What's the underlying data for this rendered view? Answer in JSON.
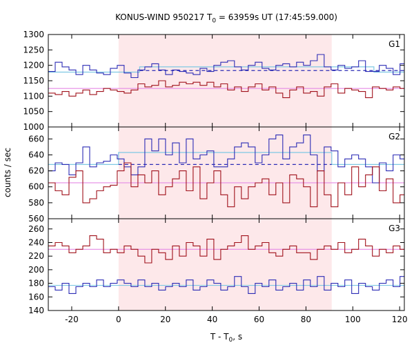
{
  "title_main": "KONUS-WIND 950217 T",
  "title_sub": "0",
  "title_rest": " = 63959s UT (17:45:59.000)",
  "xlabel_main": "T - T",
  "xlabel_sub": "0",
  "xlabel_rest": ", s",
  "ylabel": "counts / sec",
  "colors": {
    "blue": "#2b2bb5",
    "red": "#a0101a",
    "cyan": "#7ec8e3",
    "magenta": "#e58ae5",
    "shade": "#fde8ea"
  },
  "chart_data": [
    {
      "type": "line",
      "panel": "G1",
      "x_range": [
        -30,
        122
      ],
      "ylim": [
        1000,
        1300
      ],
      "yticks": [
        1000,
        1050,
        1100,
        1150,
        1200,
        1250,
        1300
      ],
      "xticks": [
        -20,
        0,
        20,
        40,
        60,
        80,
        100,
        120
      ],
      "shaded_interval": [
        0,
        91
      ],
      "bin_width": 2.944,
      "series": [
        {
          "color_key": "blue",
          "x_start": -30,
          "values": [
            1180,
            1210,
            1195,
            1185,
            1170,
            1200,
            1185,
            1175,
            1170,
            1190,
            1200,
            1175,
            1160,
            1185,
            1195,
            1205,
            1185,
            1170,
            1185,
            1180,
            1175,
            1170,
            1190,
            1180,
            1200,
            1210,
            1215,
            1195,
            1185,
            1200,
            1210,
            1190,
            1185,
            1200,
            1205,
            1195,
            1210,
            1200,
            1215,
            1235,
            1195,
            1185,
            1200,
            1190,
            1195,
            1215,
            1180,
            1180,
            1200,
            1190,
            1170,
            1205,
            1195,
            1215,
            1195,
            1215,
            1205,
            1195,
            1205,
            1225,
            1200,
            1210,
            1220,
            1225,
            1200,
            1215,
            1190,
            1185,
            1195,
            1170,
            1175,
            1170
          ]
        },
        {
          "color_key": "red",
          "x_start": -30,
          "values": [
            1110,
            1105,
            1115,
            1100,
            1110,
            1120,
            1105,
            1115,
            1125,
            1120,
            1115,
            1110,
            1120,
            1140,
            1130,
            1135,
            1150,
            1130,
            1135,
            1145,
            1140,
            1145,
            1135,
            1145,
            1130,
            1140,
            1120,
            1130,
            1115,
            1130,
            1140,
            1120,
            1130,
            1110,
            1095,
            1120,
            1130,
            1110,
            1115,
            1100,
            1130,
            1140,
            1110,
            1125,
            1120,
            1115,
            1095,
            1130,
            1125,
            1120,
            1130,
            1125,
            1110,
            1130,
            1120,
            1125,
            1140,
            1115,
            1130,
            1125,
            1135,
            1135,
            1125,
            1145,
            1130,
            1140,
            1135,
            1125,
            1150,
            1130,
            1145,
            1135
          ]
        }
      ],
      "fits": [
        {
          "color_key": "cyan",
          "segments": [
            [
              -30,
              1178
            ],
            [
              9,
              1178
            ],
            [
              9,
              1195
            ],
            [
              109,
              1195
            ],
            [
              109,
              1178
            ],
            [
              122,
              1178
            ]
          ]
        },
        {
          "color_key": "blue",
          "dashed": true,
          "from": 9,
          "to": 122,
          "value": 1183
        },
        {
          "color_key": "magenta",
          "from": -30,
          "to": 122,
          "value": 1125
        }
      ],
      "label": "G1"
    },
    {
      "type": "line",
      "panel": "G2",
      "x_range": [
        -30,
        122
      ],
      "ylim": [
        560,
        675
      ],
      "yticks": [
        560,
        580,
        600,
        620,
        640,
        660
      ],
      "xticks": [
        -20,
        0,
        20,
        40,
        60,
        80,
        100,
        120
      ],
      "shaded_interval": [
        0,
        91
      ],
      "bin_width": 2.944,
      "series": [
        {
          "color_key": "blue",
          "x_start": -30,
          "values": [
            620,
            630,
            628,
            615,
            630,
            650,
            625,
            630,
            632,
            640,
            635,
            625,
            615,
            625,
            660,
            645,
            660,
            640,
            655,
            630,
            660,
            635,
            640,
            645,
            625,
            625,
            635,
            650,
            655,
            650,
            630,
            640,
            660,
            665,
            635,
            650,
            655,
            665,
            640,
            620,
            650,
            645,
            625,
            635,
            640,
            635,
            625,
            605,
            630,
            620,
            640,
            635,
            650,
            660,
            645,
            665,
            640,
            630,
            645,
            660,
            615,
            625,
            650,
            615,
            635,
            630,
            685,
            650,
            640,
            625,
            610,
            630
          ]
        },
        {
          "color_key": "red",
          "x_start": -30,
          "values": [
            605,
            595,
            590,
            612,
            620,
            580,
            585,
            595,
            600,
            602,
            620,
            630,
            600,
            615,
            605,
            620,
            590,
            600,
            610,
            620,
            595,
            625,
            585,
            605,
            620,
            590,
            575,
            600,
            585,
            600,
            605,
            610,
            590,
            605,
            580,
            615,
            610,
            600,
            575,
            620,
            590,
            575,
            605,
            590,
            625,
            600,
            615,
            625,
            595,
            610,
            580,
            590,
            580,
            605,
            615,
            585,
            595,
            620,
            590,
            575,
            600,
            625,
            595,
            615,
            600,
            610,
            595,
            575,
            605,
            590,
            610,
            580
          ]
        }
      ],
      "fits": [
        {
          "color_key": "cyan",
          "segments": [
            [
              -30,
              628
            ],
            [
              0,
              628
            ],
            [
              0,
              643
            ],
            [
              91,
              643
            ],
            [
              91,
              628
            ],
            [
              122,
              628
            ]
          ]
        },
        {
          "color_key": "blue",
          "dashed": true,
          "from": 0,
          "to": 91,
          "value": 628
        },
        {
          "color_key": "magenta",
          "from": -30,
          "to": 122,
          "value": 605
        }
      ],
      "label": "G2"
    },
    {
      "type": "line",
      "panel": "G3",
      "x_range": [
        -30,
        122
      ],
      "ylim": [
        140,
        275
      ],
      "yticks": [
        140,
        160,
        180,
        200,
        220,
        240,
        260
      ],
      "xticks": [
        -20,
        0,
        20,
        40,
        60,
        80,
        100,
        120
      ],
      "shaded_interval": [
        0,
        91
      ],
      "bin_width": 2.944,
      "series": [
        {
          "color_key": "red",
          "x_start": -30,
          "values": [
            235,
            240,
            235,
            225,
            230,
            235,
            250,
            245,
            225,
            230,
            225,
            235,
            230,
            220,
            210,
            230,
            225,
            215,
            235,
            220,
            240,
            235,
            220,
            245,
            215,
            230,
            235,
            240,
            250,
            230,
            235,
            240,
            225,
            220,
            230,
            235,
            225,
            225,
            215,
            230,
            235,
            230,
            240,
            225,
            230,
            245,
            235,
            220,
            230,
            225,
            235,
            230,
            225,
            240,
            225,
            245,
            230,
            220,
            235,
            225,
            240,
            230,
            225,
            230,
            240,
            230,
            225,
            240,
            230,
            225,
            235,
            240
          ]
        },
        {
          "color_key": "blue",
          "x_start": -30,
          "values": [
            175,
            170,
            180,
            165,
            175,
            180,
            175,
            185,
            175,
            180,
            185,
            180,
            175,
            185,
            175,
            180,
            170,
            175,
            180,
            175,
            185,
            170,
            175,
            185,
            180,
            170,
            175,
            190,
            175,
            165,
            180,
            175,
            185,
            170,
            175,
            180,
            170,
            185,
            175,
            190,
            170,
            180,
            175,
            185,
            165,
            180,
            175,
            170,
            180,
            185,
            175,
            190,
            170,
            180,
            175,
            180,
            170,
            185,
            175,
            180,
            185,
            170,
            175,
            180,
            185,
            170,
            180,
            175,
            185,
            175,
            180,
            185
          ]
        }
      ],
      "fits": [
        {
          "color_key": "magenta",
          "from": -30,
          "to": 122,
          "value": 230
        },
        {
          "color_key": "cyan",
          "from": -30,
          "to": 122,
          "value": 177
        }
      ],
      "label": "G3"
    }
  ]
}
